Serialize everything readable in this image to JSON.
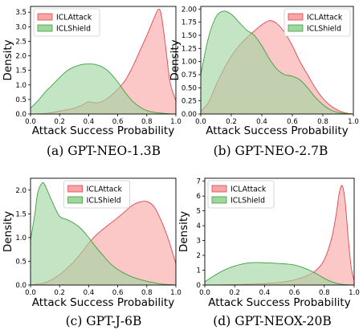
{
  "colors": {
    "attack_fill": "#f8a5a5",
    "attack_line": "#e0464b",
    "shield_fill": "#9fd59f",
    "shield_line": "#3e9f3e",
    "overlap_fill": "#b8a07a"
  },
  "chart_data": [
    {
      "type": "area",
      "caption": "(a) GPT-NEO-1.3B",
      "xlabel": "Attack Success Probability",
      "ylabel": "Density",
      "xlim": [
        0,
        1
      ],
      "ylim": [
        0,
        3.7
      ],
      "xticks": [
        "0.0",
        "0.2",
        "0.4",
        "0.6",
        "0.8",
        "1.0"
      ],
      "xtick_values": [
        0,
        0.2,
        0.4,
        0.6,
        0.8,
        1.0
      ],
      "yticks": [
        "0.0",
        "0.5",
        "1.0",
        "1.5",
        "2.0",
        "2.5",
        "3.0",
        "3.5"
      ],
      "ytick_values": [
        0,
        0.5,
        1.0,
        1.5,
        2.0,
        2.5,
        3.0,
        3.5
      ],
      "legend_position": "top-left",
      "series": [
        {
          "name": "ICLAttack",
          "color_key": "attack",
          "x": [
            0,
            0.1,
            0.2,
            0.3,
            0.35,
            0.4,
            0.45,
            0.5,
            0.55,
            0.6,
            0.65,
            0.7,
            0.75,
            0.8,
            0.85,
            0.88,
            0.9,
            0.93,
            0.96,
            1.0
          ],
          "y": [
            0,
            0.02,
            0.1,
            0.2,
            0.3,
            0.42,
            0.38,
            0.45,
            0.62,
            0.85,
            1.15,
            1.6,
            2.15,
            2.7,
            3.3,
            3.6,
            3.4,
            2.3,
            1.1,
            0.45
          ]
        },
        {
          "name": "ICLShield",
          "color_key": "shield",
          "x": [
            0,
            0.05,
            0.1,
            0.15,
            0.2,
            0.25,
            0.3,
            0.35,
            0.4,
            0.45,
            0.5,
            0.55,
            0.6,
            0.65,
            0.7,
            0.75,
            0.8,
            0.85,
            0.9,
            0.95,
            1.0
          ],
          "y": [
            0.2,
            0.45,
            0.75,
            1.0,
            1.25,
            1.48,
            1.62,
            1.7,
            1.72,
            1.7,
            1.6,
            1.4,
            1.1,
            0.75,
            0.45,
            0.25,
            0.12,
            0.06,
            0.03,
            0.01,
            0
          ]
        }
      ]
    },
    {
      "type": "area",
      "caption": "(b) GPT-NEO-2.7B",
      "xlabel": "Attack Success Probability",
      "ylabel": "Density",
      "xlim": [
        0,
        1
      ],
      "ylim": [
        0,
        2.05
      ],
      "xticks": [
        "0.0",
        "0.2",
        "0.4",
        "0.6",
        "0.8",
        "1.0"
      ],
      "xtick_values": [
        0,
        0.2,
        0.4,
        0.6,
        0.8,
        1.0
      ],
      "yticks": [
        "0.00",
        "0.25",
        "0.50",
        "0.75",
        "1.00",
        "1.25",
        "1.50",
        "1.75",
        "2.00"
      ],
      "ytick_values": [
        0,
        0.25,
        0.5,
        0.75,
        1.0,
        1.25,
        1.5,
        1.75,
        2.0
      ],
      "legend_position": "top-right",
      "series": [
        {
          "name": "ICLAttack",
          "color_key": "attack",
          "x": [
            0,
            0.05,
            0.1,
            0.15,
            0.2,
            0.25,
            0.3,
            0.35,
            0.4,
            0.45,
            0.5,
            0.55,
            0.6,
            0.65,
            0.7,
            0.75,
            0.8,
            0.85,
            0.9,
            0.95,
            1.0
          ],
          "y": [
            0.05,
            0.22,
            0.55,
            0.85,
            1.1,
            1.3,
            1.45,
            1.58,
            1.7,
            1.78,
            1.72,
            1.55,
            1.3,
            1.0,
            0.75,
            0.5,
            0.3,
            0.16,
            0.07,
            0.02,
            0
          ]
        },
        {
          "name": "ICLShield",
          "color_key": "shield",
          "x": [
            0,
            0.05,
            0.1,
            0.15,
            0.2,
            0.25,
            0.3,
            0.35,
            0.4,
            0.45,
            0.5,
            0.55,
            0.6,
            0.65,
            0.7,
            0.75,
            0.8,
            0.85,
            0.9,
            0.95,
            1.0
          ],
          "y": [
            0.75,
            1.45,
            1.85,
            1.96,
            1.9,
            1.75,
            1.6,
            1.5,
            1.3,
            1.05,
            0.85,
            0.75,
            0.72,
            0.65,
            0.5,
            0.32,
            0.18,
            0.08,
            0.03,
            0.01,
            0
          ]
        }
      ]
    },
    {
      "type": "area",
      "caption": "(c) GPT-J-6B",
      "xlabel": "Attack Success Probability",
      "ylabel": "Density",
      "xlim": [
        0,
        1
      ],
      "ylim": [
        0,
        2.25
      ],
      "xticks": [
        "0.0",
        "0.2",
        "0.4",
        "0.6",
        "0.8",
        "1.0"
      ],
      "xtick_values": [
        0,
        0.2,
        0.4,
        0.6,
        0.8,
        1.0
      ],
      "yticks": [
        "0.0",
        "0.5",
        "1.0",
        "1.5",
        "2.0"
      ],
      "ytick_values": [
        0,
        0.5,
        1.0,
        1.5,
        2.0
      ],
      "legend_position": "top-center",
      "series": [
        {
          "name": "ICLAttack",
          "color_key": "attack",
          "x": [
            0,
            0.05,
            0.1,
            0.15,
            0.2,
            0.25,
            0.3,
            0.35,
            0.4,
            0.45,
            0.5,
            0.55,
            0.6,
            0.65,
            0.7,
            0.75,
            0.8,
            0.85,
            0.9,
            0.95,
            1.0
          ],
          "y": [
            0,
            0.02,
            0.05,
            0.12,
            0.22,
            0.35,
            0.5,
            0.68,
            0.88,
            1.05,
            1.18,
            1.3,
            1.42,
            1.55,
            1.68,
            1.75,
            1.76,
            1.65,
            1.35,
            0.95,
            0.45
          ]
        },
        {
          "name": "ICLShield",
          "color_key": "shield",
          "x": [
            0,
            0.03,
            0.05,
            0.08,
            0.1,
            0.15,
            0.2,
            0.25,
            0.3,
            0.35,
            0.4,
            0.45,
            0.5,
            0.55,
            0.6,
            0.65,
            0.7,
            0.75,
            0.8,
            0.85,
            0.9,
            0.95,
            1.0
          ],
          "y": [
            0.95,
            1.5,
            1.95,
            2.15,
            2.1,
            1.75,
            1.45,
            1.38,
            1.3,
            1.18,
            1.0,
            0.8,
            0.62,
            0.45,
            0.33,
            0.24,
            0.17,
            0.12,
            0.08,
            0.05,
            0.02,
            0.01,
            0
          ]
        }
      ]
    },
    {
      "type": "area",
      "caption": "(d) GPT-NEOX-20B",
      "xlabel": "Attack Success Probability",
      "ylabel": "Density",
      "xlim": [
        0,
        1
      ],
      "ylim": [
        0,
        7.2
      ],
      "xticks": [
        "0.0",
        "0.2",
        "0.4",
        "0.6",
        "0.8",
        "1.0"
      ],
      "xtick_values": [
        0,
        0.2,
        0.4,
        0.6,
        0.8,
        1.0
      ],
      "yticks": [
        "0",
        "1",
        "2",
        "3",
        "4",
        "5",
        "6",
        "7"
      ],
      "ytick_values": [
        0,
        1,
        2,
        3,
        4,
        5,
        6,
        7
      ],
      "legend_position": "top-left",
      "series": [
        {
          "name": "ICLAttack",
          "color_key": "attack",
          "x": [
            0,
            0.1,
            0.2,
            0.3,
            0.4,
            0.5,
            0.6,
            0.7,
            0.75,
            0.8,
            0.85,
            0.88,
            0.9,
            0.92,
            0.94,
            0.96,
            0.98,
            1.0
          ],
          "y": [
            0,
            0.01,
            0.03,
            0.06,
            0.1,
            0.18,
            0.35,
            0.7,
            1.05,
            1.7,
            3.2,
            4.8,
            6.2,
            6.7,
            5.6,
            3.2,
            1.2,
            0.3
          ]
        },
        {
          "name": "ICLShield",
          "color_key": "shield",
          "x": [
            0,
            0.05,
            0.1,
            0.15,
            0.2,
            0.25,
            0.3,
            0.35,
            0.4,
            0.45,
            0.5,
            0.55,
            0.6,
            0.65,
            0.7,
            0.75,
            0.8,
            0.85,
            0.9,
            0.95,
            1.0
          ],
          "y": [
            0.22,
            0.55,
            0.85,
            1.1,
            1.28,
            1.42,
            1.5,
            1.52,
            1.5,
            1.48,
            1.45,
            1.42,
            1.35,
            1.2,
            1.0,
            0.75,
            0.45,
            0.22,
            0.08,
            0.02,
            0
          ]
        }
      ]
    }
  ]
}
